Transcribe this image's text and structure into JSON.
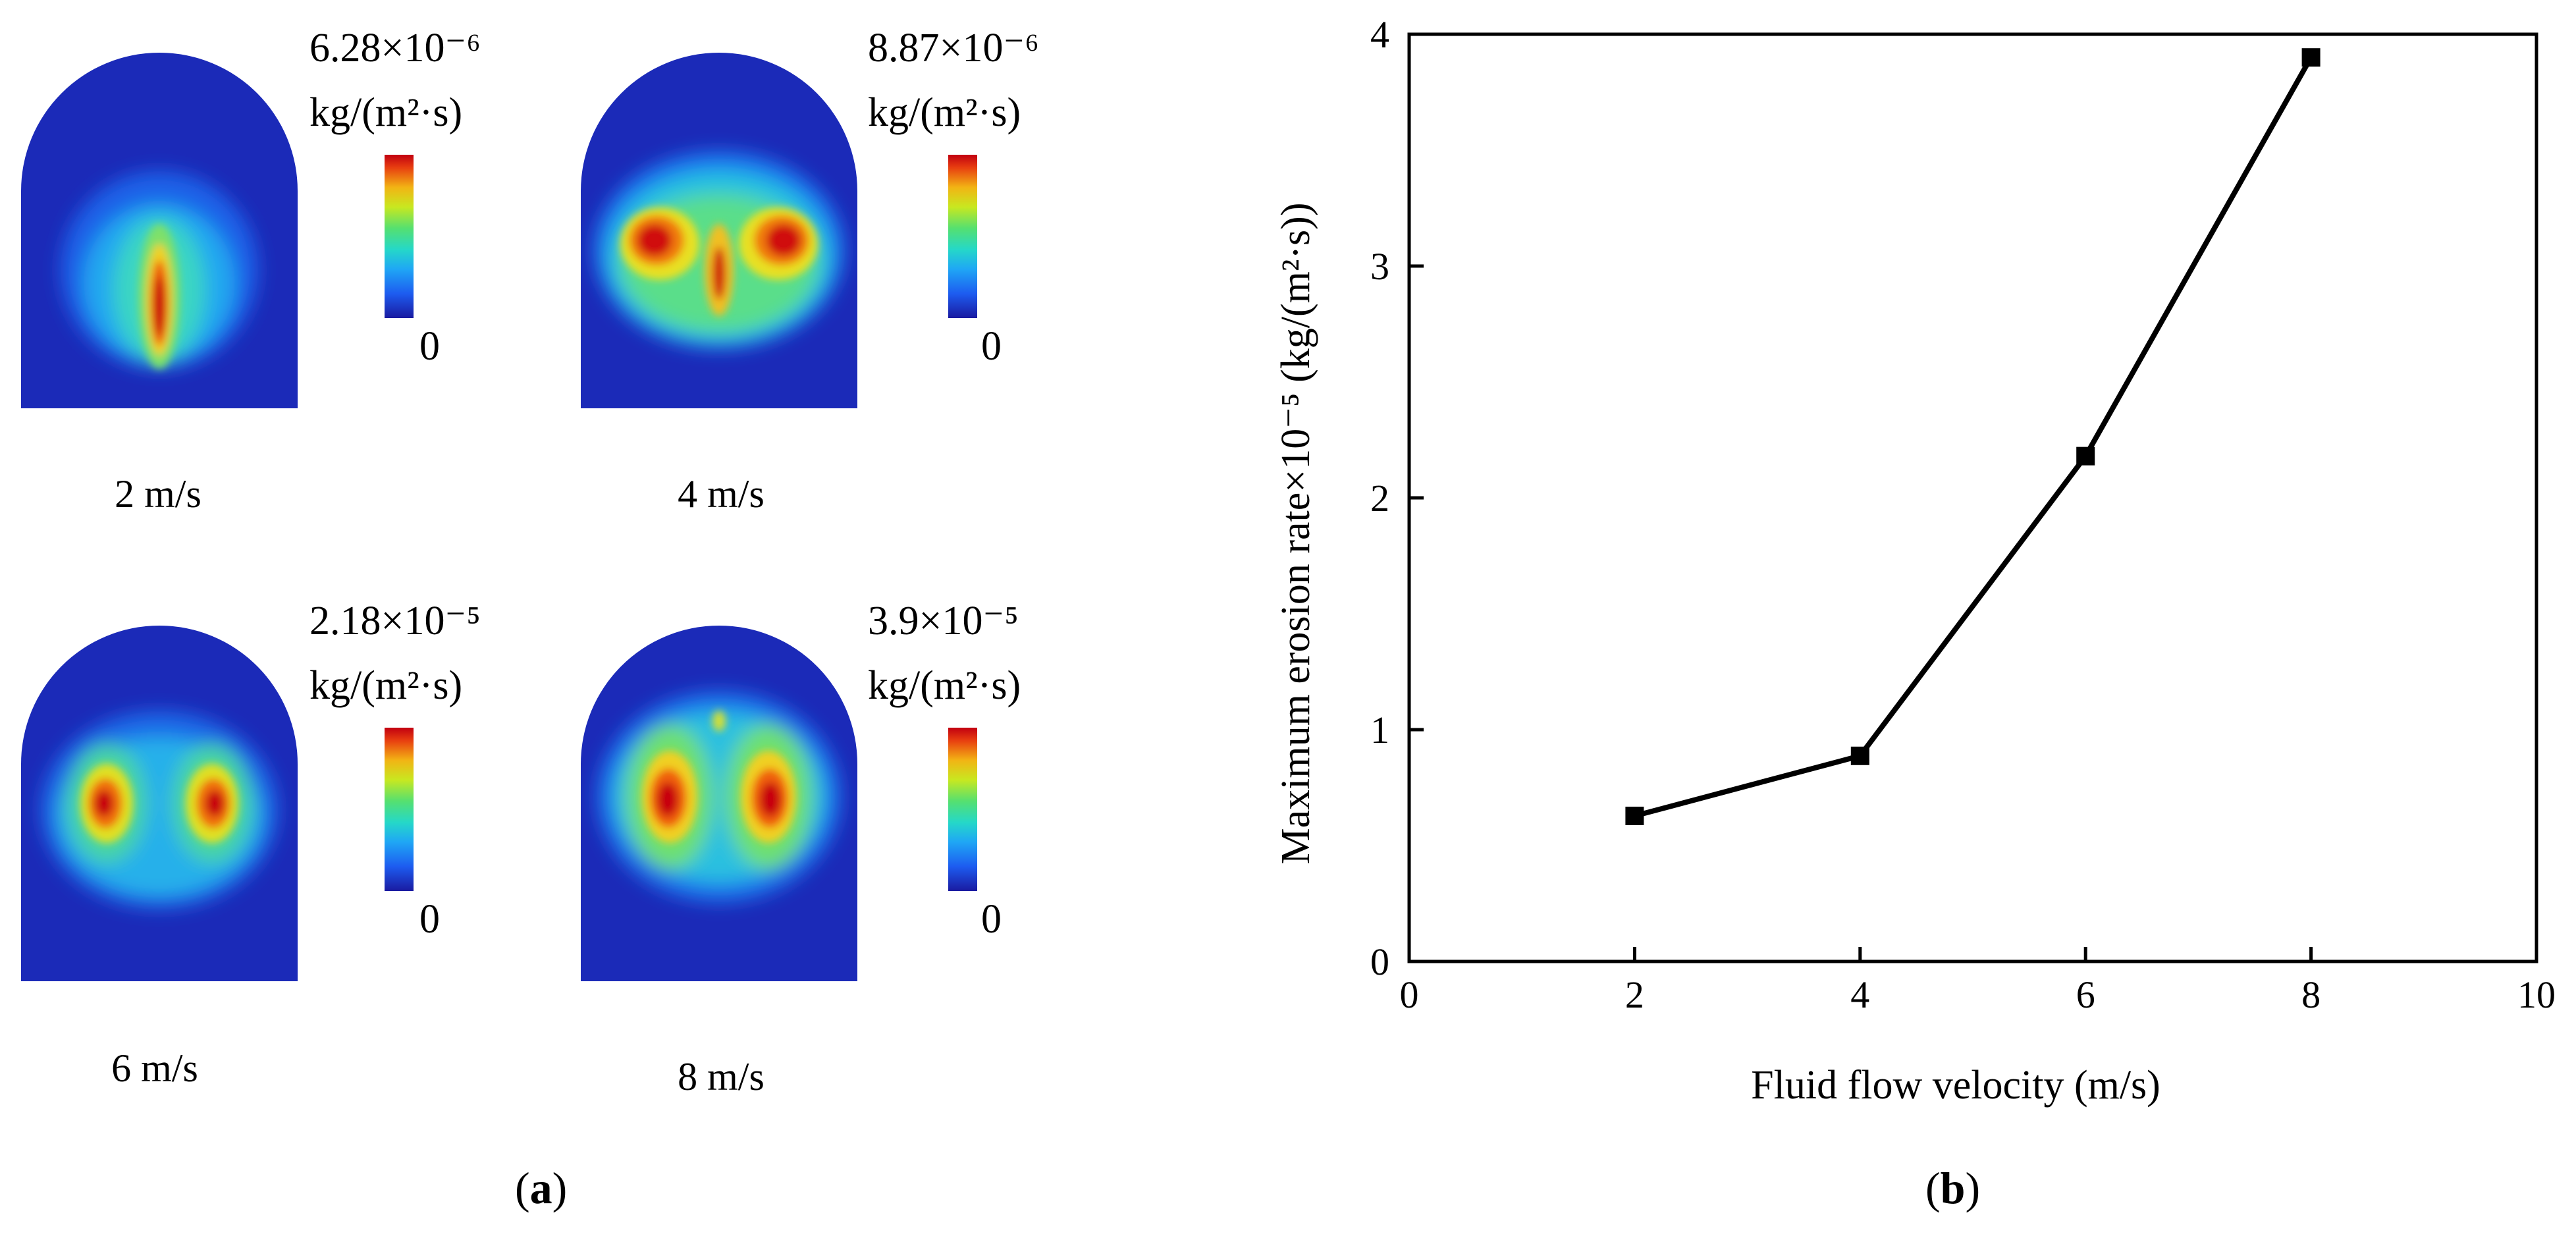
{
  "panel_a": {
    "label_open": "(",
    "label_letter": "a",
    "label_close": ")",
    "maps": [
      {
        "velocity": "2 m/s",
        "max_value": "6.28×10⁻⁶",
        "unit": "kg/(m²·s)",
        "min_value": "0"
      },
      {
        "velocity": "4 m/s",
        "max_value": "8.87×10⁻⁶",
        "unit": "kg/(m²·s)",
        "min_value": "0"
      },
      {
        "velocity": "6 m/s",
        "max_value": "2.18×10⁻⁵",
        "unit": "kg/(m²·s)",
        "min_value": "0"
      },
      {
        "velocity": "8 m/s",
        "max_value": "3.9×10⁻⁵",
        "unit": "kg/(m²·s)",
        "min_value": "0"
      }
    ]
  },
  "panel_b": {
    "label_open": "(",
    "label_letter": "b",
    "label_close": ")"
  },
  "chart_data": {
    "type": "line",
    "title": "",
    "xlabel": "Fluid flow velocity (m/s)",
    "ylabel": "Maximum erosion rate×10⁻⁵ (kg/(m²·s))",
    "xlim": [
      0,
      10
    ],
    "ylim": [
      0,
      4
    ],
    "xticks": [
      0,
      2,
      4,
      6,
      8,
      10
    ],
    "yticks": [
      0,
      1,
      2,
      3,
      4
    ],
    "xtick_labels": [
      "0",
      "2",
      "4",
      "6",
      "8",
      "10"
    ],
    "ytick_labels": [
      "0",
      "1",
      "2",
      "3",
      "4"
    ],
    "series": [
      {
        "name": "Maximum erosion rate",
        "marker": "square",
        "color": "#000000",
        "x": [
          2,
          4,
          6,
          8
        ],
        "y": [
          0.628,
          0.887,
          2.18,
          3.9
        ]
      }
    ],
    "grid": false
  }
}
